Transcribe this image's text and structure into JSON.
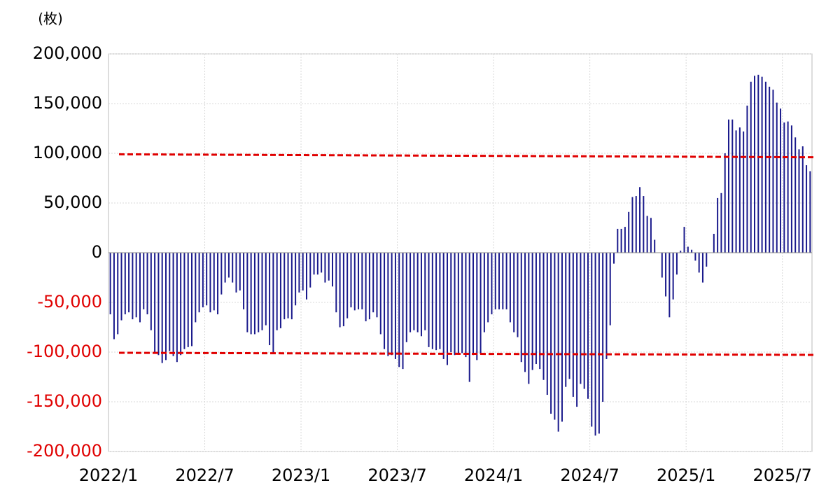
{
  "chart_data": {
    "type": "bar",
    "unit_label": "(枚)",
    "categories": [
      "2022/1",
      null,
      null,
      null,
      null,
      null,
      null,
      null,
      null,
      null,
      null,
      null,
      null,
      null,
      null,
      null,
      null,
      null,
      null,
      null,
      null,
      null,
      null,
      null,
      null,
      null,
      "2022/7",
      null,
      null,
      null,
      null,
      null,
      null,
      null,
      null,
      null,
      null,
      null,
      null,
      null,
      null,
      null,
      null,
      null,
      null,
      null,
      null,
      null,
      null,
      null,
      null,
      null,
      "2023/1",
      null,
      null,
      null,
      null,
      null,
      null,
      null,
      null,
      null,
      null,
      null,
      null,
      null,
      null,
      null,
      null,
      null,
      null,
      null,
      null,
      null,
      null,
      null,
      null,
      null,
      "2023/7",
      null,
      null,
      null,
      null,
      null,
      null,
      null,
      null,
      null,
      null,
      null,
      null,
      null,
      null,
      null,
      null,
      null,
      null,
      null,
      null,
      null,
      null,
      null,
      null,
      null,
      "2024/1",
      null,
      null,
      null,
      null,
      null,
      null,
      null,
      null,
      null,
      null,
      null,
      null,
      null,
      null,
      null,
      null,
      null,
      null,
      null,
      null,
      null,
      null,
      null,
      null,
      null,
      "2024/7",
      null,
      null,
      null,
      null,
      null,
      null,
      null,
      null,
      null,
      null,
      null,
      null,
      null,
      null,
      null,
      null,
      null,
      null,
      null,
      null,
      null,
      null,
      null,
      null,
      null,
      "2025/1",
      null,
      null,
      null,
      null,
      null,
      null,
      null,
      null,
      null,
      null,
      null,
      null,
      null,
      null,
      null,
      null,
      null,
      null,
      null,
      null,
      null,
      null,
      null,
      null,
      null,
      "2025/7",
      null,
      null,
      null,
      null,
      null,
      null,
      null
    ],
    "values": [
      -62000,
      -87000,
      -82000,
      -68000,
      -62000,
      -60000,
      -67000,
      -65000,
      -70000,
      -57000,
      -62000,
      -78000,
      -101000,
      -103000,
      -111000,
      -108000,
      -99000,
      -104000,
      -110000,
      -103000,
      -97000,
      -95000,
      -94000,
      -70000,
      -60000,
      -55000,
      -53000,
      -60000,
      -58000,
      -62000,
      -42000,
      -30000,
      -25000,
      -30000,
      -40000,
      -38000,
      -57000,
      -80000,
      -82000,
      -82000,
      -80000,
      -78000,
      -73000,
      -93000,
      -102000,
      -78000,
      -76000,
      -67000,
      -66000,
      -67000,
      -53000,
      -40000,
      -38000,
      -47000,
      -35000,
      -22000,
      -22000,
      -20000,
      -30000,
      -28000,
      -34000,
      -60000,
      -75000,
      -74000,
      -66000,
      -55000,
      -58000,
      -57000,
      -57000,
      -69000,
      -67000,
      -60000,
      -65000,
      -82000,
      -97000,
      -104000,
      -103000,
      -107000,
      -115000,
      -117000,
      -90000,
      -80000,
      -78000,
      -80000,
      -84000,
      -78000,
      -95000,
      -97000,
      -98000,
      -97000,
      -107000,
      -113000,
      -100000,
      -103000,
      -102000,
      -101000,
      -105000,
      -130000,
      -103000,
      -108000,
      -102000,
      -80000,
      -70000,
      -62000,
      -57000,
      -57000,
      -57000,
      -57000,
      -70000,
      -80000,
      -85000,
      -110000,
      -120000,
      -132000,
      -118000,
      -112000,
      -117000,
      -128000,
      -143000,
      -162000,
      -168000,
      -180000,
      -170000,
      -135000,
      -127000,
      -145000,
      -155000,
      -132000,
      -137000,
      -147000,
      -175000,
      -184000,
      -182000,
      -150000,
      -107000,
      -73000,
      -11000,
      24000,
      24000,
      26000,
      41000,
      56000,
      57000,
      66000,
      57000,
      37000,
      35000,
      13000,
      0,
      -25000,
      -44000,
      -65000,
      -47000,
      -22000,
      2000,
      26000,
      6000,
      3000,
      -8000,
      -20000,
      -30000,
      -14000,
      0,
      19000,
      55000,
      60000,
      100000,
      134000,
      134000,
      123000,
      126000,
      122000,
      148000,
      172000,
      178000,
      179000,
      177000,
      172000,
      167000,
      164000,
      151000,
      145000,
      131000,
      132000,
      128000,
      116000,
      104000,
      107000,
      88000,
      82000
    ],
    "color": "#1a1a8c",
    "ylim": [
      -200000,
      200000
    ],
    "yticks": [
      {
        "value": -200000,
        "label": "-200,000"
      },
      {
        "value": -150000,
        "label": "-150,000"
      },
      {
        "value": -100000,
        "label": "-100,000"
      },
      {
        "value": -50000,
        "label": "-50,000"
      },
      0,
      {
        "value": 50000,
        "label": "50,000"
      },
      {
        "value": 100000,
        "label": "100,000"
      },
      {
        "value": 150000,
        "label": "150,000"
      },
      {
        "value": 200000,
        "label": "200,000"
      }
    ],
    "negative_tick_color": "#e00000",
    "grid": true,
    "reference_lines": [
      {
        "start": 99000,
        "end": 96000,
        "color": "#e00000"
      },
      {
        "start": -100700,
        "end": -102800,
        "color": "#e00000"
      }
    ]
  }
}
